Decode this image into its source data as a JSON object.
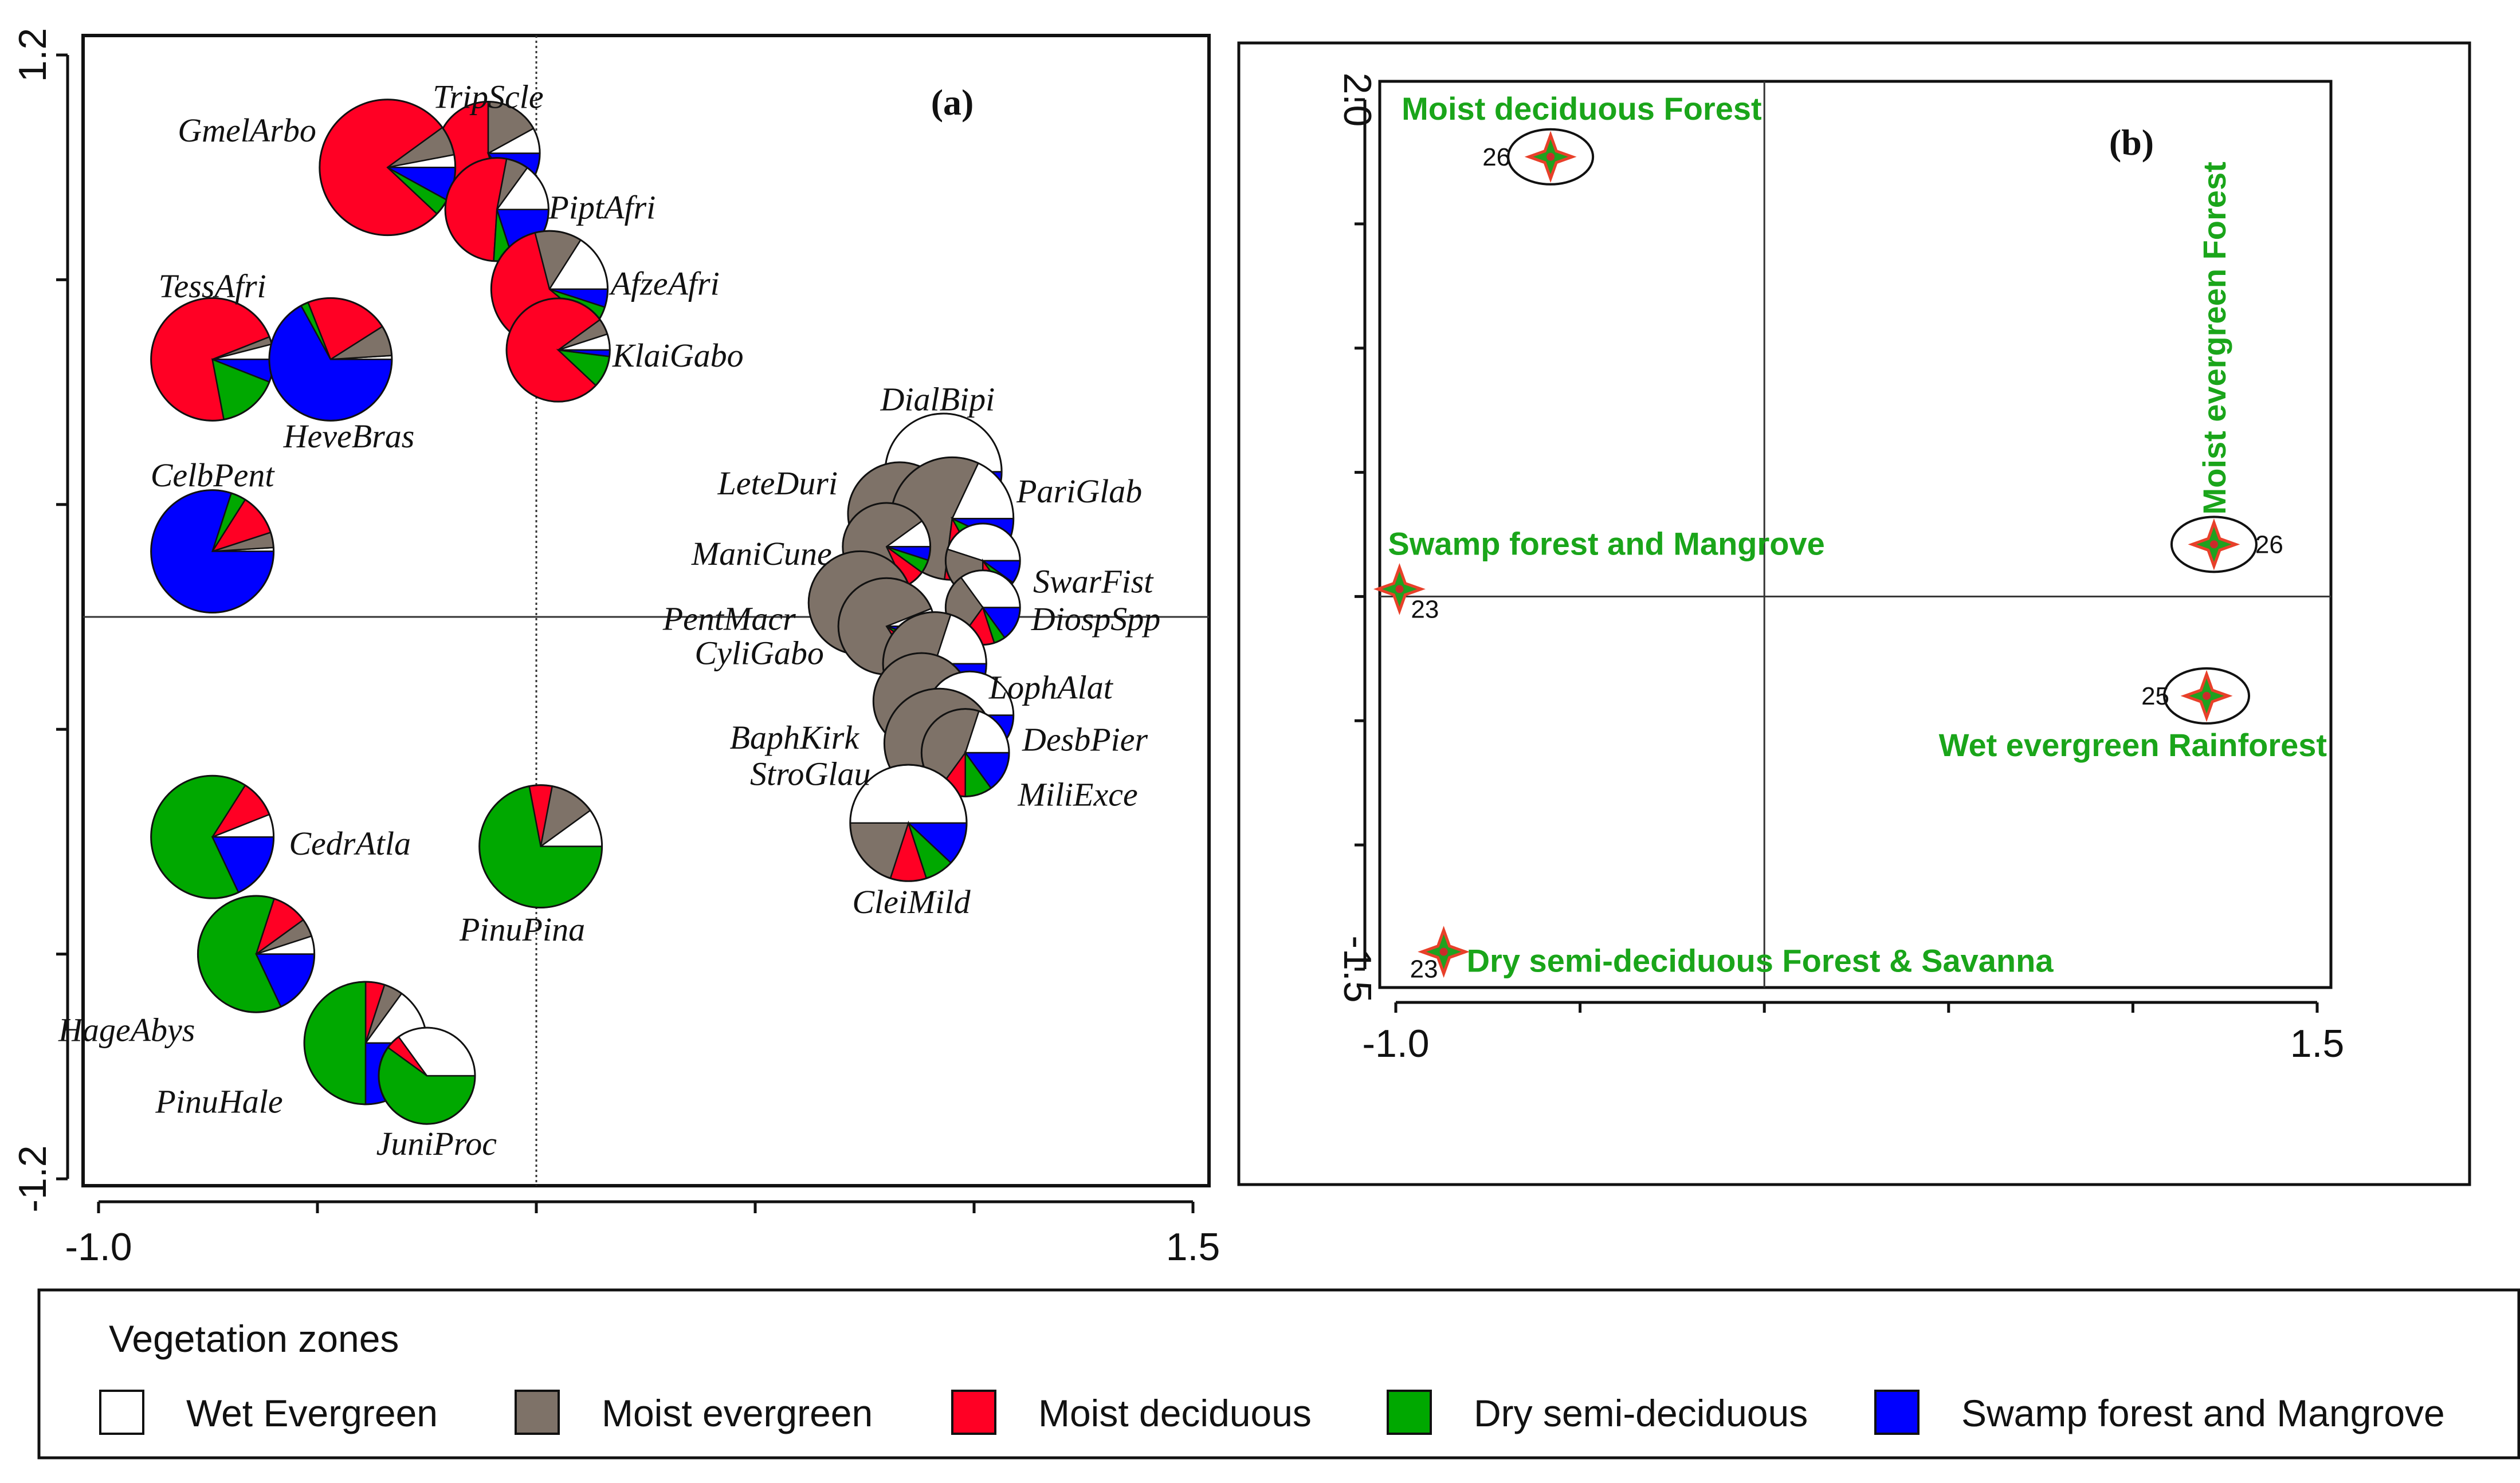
{
  "chart_data": [
    {
      "type": "scatter",
      "subtype": "pie-glyph biplot",
      "panel": "(a)",
      "xlim": [
        -1.0,
        1.5
      ],
      "ylim": [
        -1.2,
        1.2
      ],
      "x_ticks": [
        "-1.0",
        "1.5"
      ],
      "y_ticks": [
        "1.2",
        "-1.2"
      ],
      "slice_order": [
        "Wet Evergreen",
        "Moist evergreen",
        "Moist deciduous",
        "Dry semi-deciduous",
        "Swamp forest and Mangrove"
      ],
      "points": [
        {
          "label": "TripScle",
          "x": -0.11,
          "y": 0.99,
          "r": 0.118,
          "shares": [
            0.08,
            0.17,
            0.55,
            0.05,
            0.15
          ]
        },
        {
          "label": "GmelArbo",
          "x": -0.34,
          "y": 0.96,
          "r": 0.155,
          "shares": [
            0.03,
            0.07,
            0.78,
            0.04,
            0.08
          ]
        },
        {
          "label": "PiptAfri",
          "x": -0.09,
          "y": 0.87,
          "r": 0.118,
          "shares": [
            0.15,
            0.07,
            0.52,
            0.06,
            0.2
          ]
        },
        {
          "label": "AfzeAfri",
          "x": 0.03,
          "y": 0.7,
          "r": 0.133,
          "shares": [
            0.16,
            0.13,
            0.6,
            0.06,
            0.05
          ]
        },
        {
          "label": "KlaiGabo",
          "x": 0.05,
          "y": 0.57,
          "r": 0.118,
          "shares": [
            0.05,
            0.05,
            0.78,
            0.1,
            0.02
          ]
        },
        {
          "label": "TessAfri",
          "x": -0.74,
          "y": 0.55,
          "r": 0.14,
          "shares": [
            0.04,
            0.02,
            0.72,
            0.16,
            0.06
          ]
        },
        {
          "label": "HeveBras",
          "x": -0.47,
          "y": 0.55,
          "r": 0.14,
          "shares": [
            0.01,
            0.08,
            0.22,
            0.02,
            0.67
          ]
        },
        {
          "label": "CelbPent",
          "x": -0.74,
          "y": 0.14,
          "r": 0.14,
          "shares": [
            0.01,
            0.04,
            0.11,
            0.04,
            0.8
          ]
        },
        {
          "label": "DialBipi",
          "x": 0.93,
          "y": 0.31,
          "r": 0.133,
          "shares": [
            0.8,
            0.05,
            0.05,
            0.05,
            0.05
          ]
        },
        {
          "label": "LeteDuri",
          "x": 0.83,
          "y": 0.22,
          "r": 0.118,
          "shares": [
            0.15,
            0.65,
            0.08,
            0.07,
            0.05
          ]
        },
        {
          "label": "PariGlab",
          "x": 0.95,
          "y": 0.21,
          "r": 0.14,
          "shares": [
            0.18,
            0.55,
            0.1,
            0.1,
            0.07
          ]
        },
        {
          "label": "ManiCune",
          "x": 0.8,
          "y": 0.15,
          "r": 0.1,
          "shares": [
            0.1,
            0.72,
            0.08,
            0.05,
            0.05
          ]
        },
        {
          "label": "SwarFist",
          "x": 1.02,
          "y": 0.12,
          "r": 0.085,
          "shares": [
            0.45,
            0.3,
            0.1,
            0.05,
            0.1
          ]
        },
        {
          "label": "PentMacr",
          "x": 0.74,
          "y": 0.03,
          "r": 0.118,
          "shares": [
            0.05,
            0.8,
            0.07,
            0.05,
            0.03
          ]
        },
        {
          "label": "DiospSpp",
          "x": 1.02,
          "y": 0.02,
          "r": 0.085,
          "shares": [
            0.35,
            0.3,
            0.15,
            0.05,
            0.15
          ]
        },
        {
          "label": "CyliGabo",
          "x": 0.8,
          "y": -0.02,
          "r": 0.11,
          "shares": [
            0.06,
            0.78,
            0.06,
            0.05,
            0.05
          ]
        },
        {
          "label": "LophAlat",
          "x": 0.91,
          "y": -0.1,
          "r": 0.118,
          "shares": [
            0.2,
            0.5,
            0.1,
            0.07,
            0.13
          ]
        },
        {
          "label": "BaphKirk",
          "x": 0.88,
          "y": -0.18,
          "r": 0.11,
          "shares": [
            0.06,
            0.75,
            0.06,
            0.07,
            0.06
          ]
        },
        {
          "label": "DesbPier",
          "x": 0.99,
          "y": -0.21,
          "r": 0.1,
          "shares": [
            0.4,
            0.3,
            0.1,
            0.05,
            0.15
          ]
        },
        {
          "label": "StroGlau",
          "x": 0.92,
          "y": -0.27,
          "r": 0.125,
          "shares": [
            0.05,
            0.6,
            0.08,
            0.12,
            0.15
          ]
        },
        {
          "label": "MiliExce",
          "x": 0.98,
          "y": -0.29,
          "r": 0.1,
          "shares": [
            0.2,
            0.45,
            0.1,
            0.1,
            0.15
          ]
        },
        {
          "label": "CleiMild",
          "x": 0.85,
          "y": -0.44,
          "r": 0.133,
          "shares": [
            0.5,
            0.2,
            0.1,
            0.08,
            0.12
          ]
        },
        {
          "label": "CedrAtla",
          "x": -0.74,
          "y": -0.47,
          "r": 0.14,
          "shares": [
            0.06,
            0.0,
            0.1,
            0.66,
            0.18
          ]
        },
        {
          "label": "PinuPina",
          "x": 0.01,
          "y": -0.49,
          "r": 0.14,
          "shares": [
            0.1,
            0.12,
            0.06,
            0.72,
            0.0
          ]
        },
        {
          "label": "HageAbys",
          "x": -0.64,
          "y": -0.72,
          "r": 0.133,
          "shares": [
            0.05,
            0.05,
            0.1,
            0.62,
            0.18
          ]
        },
        {
          "label": "PinuHale",
          "x": -0.39,
          "y": -0.91,
          "r": 0.14,
          "shares": [
            0.15,
            0.05,
            0.05,
            0.5,
            0.25
          ]
        },
        {
          "label": "JuniProc",
          "x": -0.25,
          "y": -0.98,
          "r": 0.11,
          "shares": [
            0.35,
            0.0,
            0.05,
            0.6,
            0.0
          ]
        }
      ]
    },
    {
      "type": "scatter",
      "panel": "(b)",
      "xlim": [
        -1.0,
        1.5
      ],
      "ylim": [
        -1.5,
        2.0
      ],
      "x_ticks": [
        "-1.0",
        "1.5"
      ],
      "y_ticks": [
        "2.0",
        "-1.5"
      ],
      "points": [
        {
          "label": "Moist deciduous Forest",
          "site": "26",
          "x": -0.58,
          "y": 1.77,
          "circled": true
        },
        {
          "label": "Moist evergreen Forest",
          "site": "26",
          "x": 1.22,
          "y": 0.21,
          "circled": true
        },
        {
          "label": "Swamp forest and Mangrove",
          "site": "23",
          "x": -0.99,
          "y": 0.03,
          "circled": false
        },
        {
          "label": "Wet evergreen Rainforest",
          "site": "25",
          "x": 1.2,
          "y": -0.4,
          "circled": true
        },
        {
          "label": "Dry semi-deciduous Forest & Savanna",
          "site": "23",
          "x": -0.87,
          "y": -1.43,
          "circled": false
        }
      ]
    }
  ],
  "legend": {
    "title": "Vegetation zones",
    "items": [
      {
        "label": "Wet Evergreen",
        "color": "#ffffff"
      },
      {
        "label": "Moist evergreen",
        "color": "#7e7268"
      },
      {
        "label": "Moist deciduous",
        "color": "#ff0024"
      },
      {
        "label": "Dry semi-deciduous",
        "color": "#00a800"
      },
      {
        "label": "Swamp forest and Mangrove",
        "color": "#0000ff"
      }
    ]
  },
  "colors": {
    "zone_label": "#1aa51a",
    "marker_fill": "#1fa11f",
    "marker_edge": "#e8402a"
  }
}
